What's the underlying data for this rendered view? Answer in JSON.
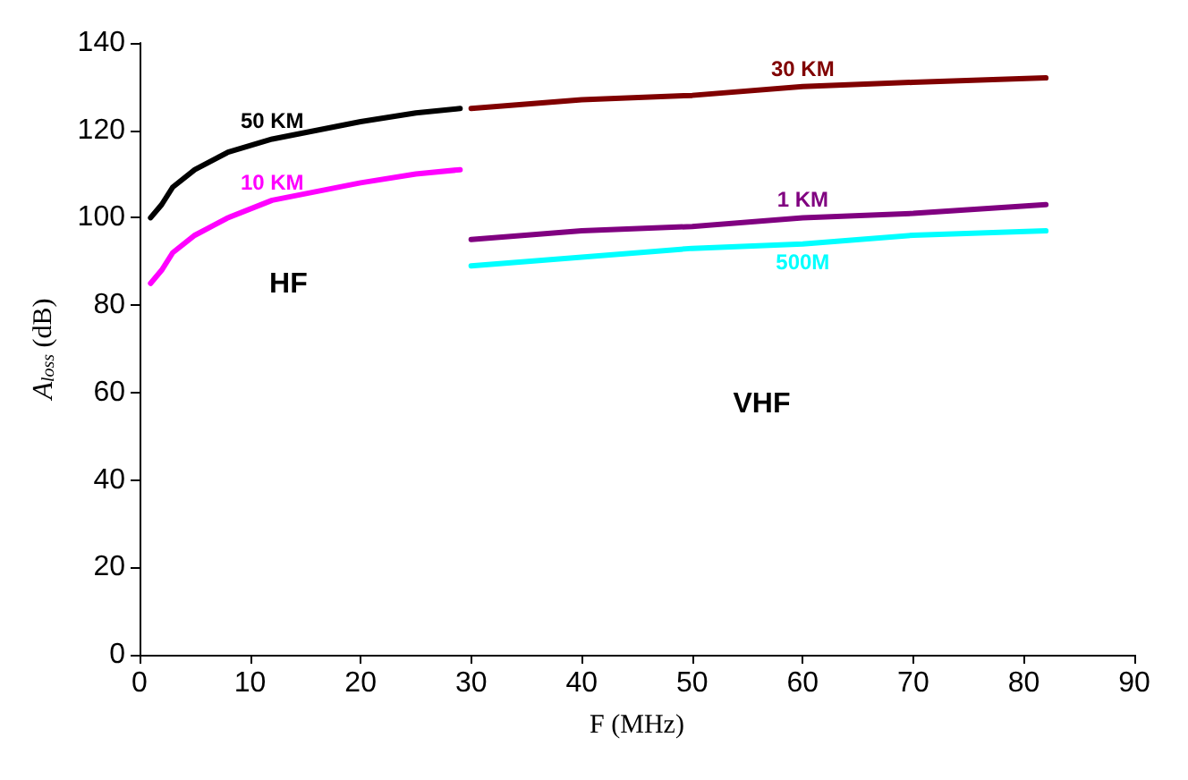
{
  "chart_data": {
    "type": "line",
    "xlabel": "F (MHz)",
    "ylabel": "A$_{loss}$ (dB)",
    "xlim": [
      0,
      90
    ],
    "xticks": [
      0,
      10,
      20,
      30,
      40,
      50,
      60,
      70,
      80,
      90
    ],
    "ylim": [
      0,
      140
    ],
    "yticks": [
      0,
      20,
      40,
      60,
      80,
      100,
      120,
      140
    ],
    "grid": false,
    "legend": false,
    "marker": "none",
    "line_style": "solid",
    "series": [
      {
        "name": "50 KM",
        "color": "#000000",
        "x": [
          1,
          2,
          3,
          5,
          8,
          12,
          16,
          20,
          25,
          29
        ],
        "values": [
          100,
          103,
          107,
          111,
          115,
          118,
          120,
          122,
          124,
          125
        ]
      },
      {
        "name": "10 KM",
        "color": "#ff00ff",
        "x": [
          1,
          2,
          3,
          5,
          8,
          12,
          16,
          20,
          25,
          29
        ],
        "values": [
          85,
          88,
          92,
          96,
          100,
          104,
          106,
          108,
          110,
          111
        ]
      },
      {
        "name": "30 KM",
        "color": "#800000",
        "x": [
          30,
          40,
          50,
          60,
          70,
          82
        ],
        "values": [
          125,
          127,
          128,
          130,
          131,
          132
        ]
      },
      {
        "name": "1 KM",
        "color": "#800080",
        "x": [
          30,
          40,
          50,
          60,
          70,
          82
        ],
        "values": [
          95,
          97,
          98,
          100,
          101,
          103
        ]
      },
      {
        "name": "500M",
        "color": "#00ffff",
        "x": [
          30,
          40,
          50,
          60,
          70,
          82
        ],
        "values": [
          89,
          91,
          93,
          94,
          96,
          97
        ]
      }
    ],
    "annotations": [
      "HF",
      "VHF"
    ]
  }
}
